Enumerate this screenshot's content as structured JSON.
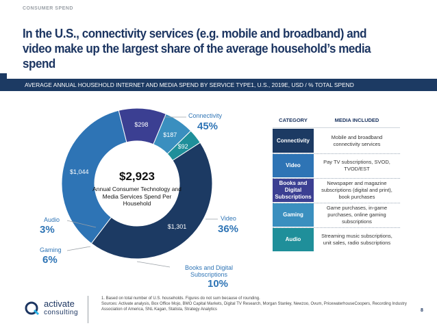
{
  "header": {
    "eyebrow": "CONSUMER SPEND",
    "title": "In the U.S., connectivity services (e.g. mobile and broadband) and video make up the largest share of the average household’s media spend",
    "subtitle": "AVERAGE ANNUAL HOUSEHOLD INTERNET AND MEDIA SPEND BY SERVICE TYPE1, U.S., 2019E, USD / % TOTAL SPEND"
  },
  "chart_data": {
    "type": "pie",
    "title": "AVERAGE ANNUAL HOUSEHOLD INTERNET AND MEDIA SPEND BY SERVICE TYPE1, U.S., 2019E, USD / % TOTAL SPEND",
    "unit": "USD",
    "total_label": "$2,923",
    "total_description": "Annual Consumer Technology and Media Services Spend Per Household",
    "categories": [
      "Connectivity",
      "Video",
      "Books and Digital Subscriptions",
      "Gaming",
      "Audio"
    ],
    "values": [
      1301,
      1044,
      298,
      187,
      92
    ],
    "value_labels": [
      "$1,301",
      "$1,044",
      "$298",
      "$187",
      "$92"
    ],
    "percent_labels": [
      "45%",
      "36%",
      "10%",
      "6%",
      "3%"
    ],
    "colors": [
      "#1c3a63",
      "#2e74b5",
      "#3b3f92",
      "#3a8fbf",
      "#1f8f9a"
    ]
  },
  "table": {
    "headers": {
      "category": "CATEGORY",
      "media": "MEDIA INCLUDED"
    },
    "rows": [
      {
        "category": "Connectivity",
        "media": "Mobile and broadband connectivity services",
        "color": "#1c3a63"
      },
      {
        "category": "Video",
        "media": "Pay TV subscriptions, SVOD, TVOD/EST",
        "color": "#2e74b5"
      },
      {
        "category": "Books and Digital Subscriptions",
        "media": "Newspaper and magazine subscriptions (digital and print), book purchases",
        "color": "#3b3f92"
      },
      {
        "category": "Gaming",
        "media": "Game purchases, in-game purchases, online gaming subscriptions",
        "color": "#3a8fbf"
      },
      {
        "category": "Audio",
        "media": "Streaming music subscriptions, unit sales, radio subscriptions",
        "color": "#1f8f9a"
      }
    ]
  },
  "footer": {
    "logo_main": "activate",
    "logo_sub": "consulting",
    "note1": "1. Based on total number of U.S. households. Figures do not sum because of rounding.",
    "note2": "Sources: Activate analysis, Box Office Mojo, BMO Capital Markets, Digital TV Research, Morgan Stanley, Newzoo, Ovum, PricewaterhouseCoopers, Recording Industry Association of America, SNL Kagan, Statista, Strategy Analytics",
    "page": "8"
  }
}
